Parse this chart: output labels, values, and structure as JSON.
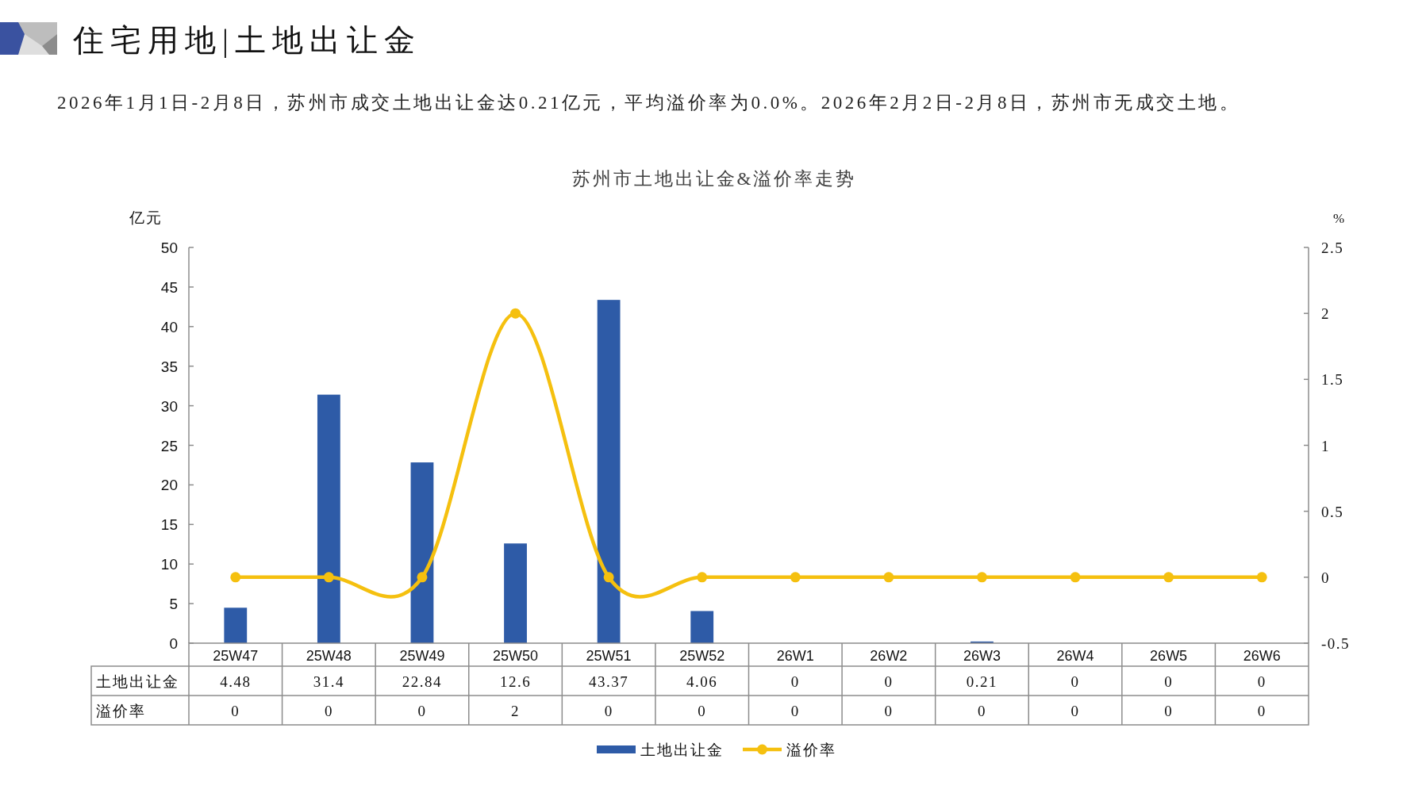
{
  "chart_data": {
    "type": "bar",
    "title": "苏州市土地出让金&溢价率走势",
    "subtitle": "2026年1月1日-2月8日，苏州市成交土地出让金达0.21亿元，平均溢价率为0.0%。2026年2月2日-2月8日，苏州市无成交土地。",
    "annotations": [
      "住宅用地|土地出让金"
    ],
    "categories": [
      "25W47",
      "25W48",
      "25W49",
      "25W50",
      "25W51",
      "25W52",
      "26W1",
      "26W2",
      "26W3",
      "26W4",
      "26W5",
      "26W6"
    ],
    "series": [
      {
        "name": "土地出让金",
        "color": "#2e5ba7",
        "values": [
          4.48,
          31.4,
          22.84,
          12.6,
          43.37,
          4.06,
          0,
          0,
          0.21,
          0,
          0,
          0
        ]
      },
      {
        "name": "溢价率",
        "type": "line",
        "axis": "y2",
        "color": "#f5c00f",
        "values": [
          0,
          0,
          0,
          2,
          0,
          0,
          0,
          0,
          0,
          0,
          0,
          0
        ]
      }
    ],
    "ylabel": "亿元",
    "y2label": "%",
    "ylim": [
      0,
      50
    ],
    "yticks": [
      0,
      5,
      10,
      15,
      20,
      25,
      30,
      35,
      40,
      45,
      50
    ],
    "y2lim": [
      -0.5,
      2.5
    ],
    "y2ticks": [
      -0.5,
      0,
      0.5,
      1,
      1.5,
      2,
      2.5
    ],
    "marker": "circle",
    "legend": "bottom",
    "data_labels": true
  }
}
